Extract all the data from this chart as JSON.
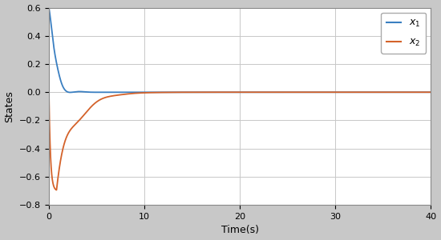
{
  "title": "",
  "xlabel": "Time(s)",
  "ylabel": "States",
  "xlim": [
    0,
    40
  ],
  "ylim": [
    -0.8,
    0.6
  ],
  "yticks": [
    -0.8,
    -0.6,
    -0.4,
    -0.2,
    0,
    0.2,
    0.4,
    0.6
  ],
  "xticks": [
    0,
    10,
    20,
    30,
    40
  ],
  "x1_color": "#3a7fc1",
  "x2_color": "#d4622a",
  "background_color": "#c8c8c8",
  "axes_bg_color": "#ffffff",
  "grid_color": "#c8c8c8"
}
